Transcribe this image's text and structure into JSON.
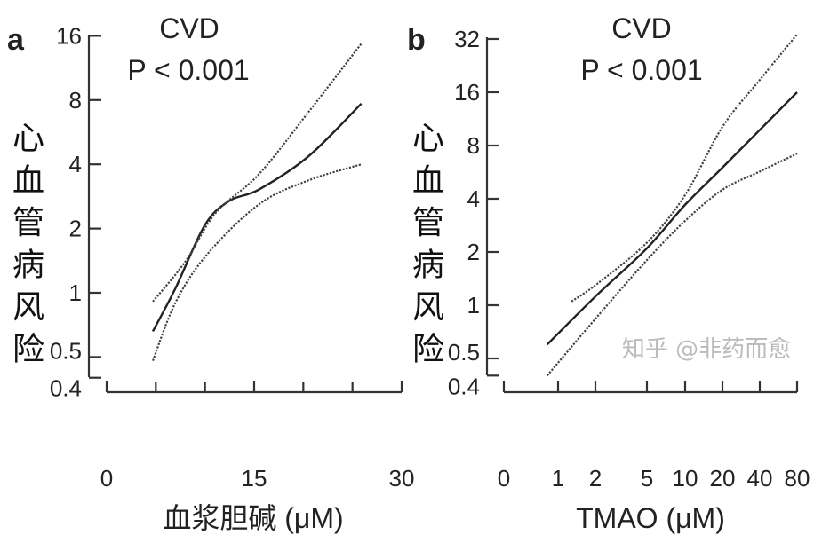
{
  "chart_data": [
    {
      "type": "line",
      "panel_label": "a",
      "title": "CVD",
      "subtitle": "P < 0.001",
      "xlabel": "血浆胆碱 (μM)",
      "ylabel": "心血管病风险",
      "x_ticks": [
        0,
        15,
        30
      ],
      "x_minor_ticks": [
        5,
        10,
        20,
        25
      ],
      "xlim": [
        0,
        30
      ],
      "y_scale": "log2",
      "y_ticks": [
        0.4,
        0.5,
        1,
        2,
        4,
        8,
        16
      ],
      "ylim": [
        0.4,
        16
      ],
      "grid": false,
      "series": [
        {
          "style": "solid",
          "points": [
            [
              4.7,
              0.66
            ],
            [
              7,
              1.05
            ],
            [
              10,
              2.08
            ],
            [
              12.5,
              2.7
            ],
            [
              15.5,
              3.05
            ],
            [
              20.5,
              4.35
            ],
            [
              25.9,
              7.7
            ]
          ]
        },
        {
          "style": "dotted",
          "points": [
            [
              4.7,
              0.91
            ],
            [
              8,
              1.4
            ],
            [
              11.1,
              2.37
            ],
            [
              15.5,
              3.6
            ],
            [
              20.5,
              7.0
            ],
            [
              25.9,
              14.7
            ]
          ]
        },
        {
          "style": "dotted",
          "points": [
            [
              4.7,
              0.48
            ],
            [
              7,
              0.9
            ],
            [
              10.2,
              1.51
            ],
            [
              15.5,
              2.6
            ],
            [
              20.5,
              3.36
            ],
            [
              25.9,
              4.0
            ]
          ]
        }
      ]
    },
    {
      "type": "line",
      "panel_label": "b",
      "title": "CVD",
      "subtitle": "P < 0.001",
      "xlabel": "TMAO (μM)",
      "ylabel": "心血管病风险",
      "x_ticks": [
        0,
        1,
        2,
        5,
        10,
        20,
        40,
        80
      ],
      "xlim": [
        0,
        80
      ],
      "y_scale": "log2",
      "y_ticks": [
        0.4,
        0.5,
        1,
        2,
        4,
        8,
        16,
        32
      ],
      "ylim": [
        0.4,
        32
      ],
      "grid": false,
      "series": [
        {
          "style": "solid",
          "points": [
            [
              0.8,
              0.6
            ],
            [
              2,
              1.12
            ],
            [
              5,
              2.1
            ],
            [
              10,
              3.7
            ],
            [
              20,
              6.0
            ],
            [
              40,
              9.8
            ],
            [
              80,
              16
            ]
          ]
        },
        {
          "style": "dotted",
          "points": [
            [
              1.36,
              1.05
            ],
            [
              2.1,
              1.32
            ],
            [
              5,
              2.26
            ],
            [
              10,
              4.2
            ],
            [
              20,
              10.2
            ],
            [
              40,
              18.8
            ],
            [
              80,
              34
            ]
          ]
        },
        {
          "style": "dotted",
          "points": [
            [
              0.8,
              0.4
            ],
            [
              2.1,
              0.86
            ],
            [
              5,
              1.8
            ],
            [
              10,
              3.0
            ],
            [
              20,
              4.5
            ],
            [
              40,
              5.7
            ],
            [
              80,
              7.2
            ]
          ]
        }
      ]
    }
  ],
  "watermark": "知乎 @非药而愈"
}
